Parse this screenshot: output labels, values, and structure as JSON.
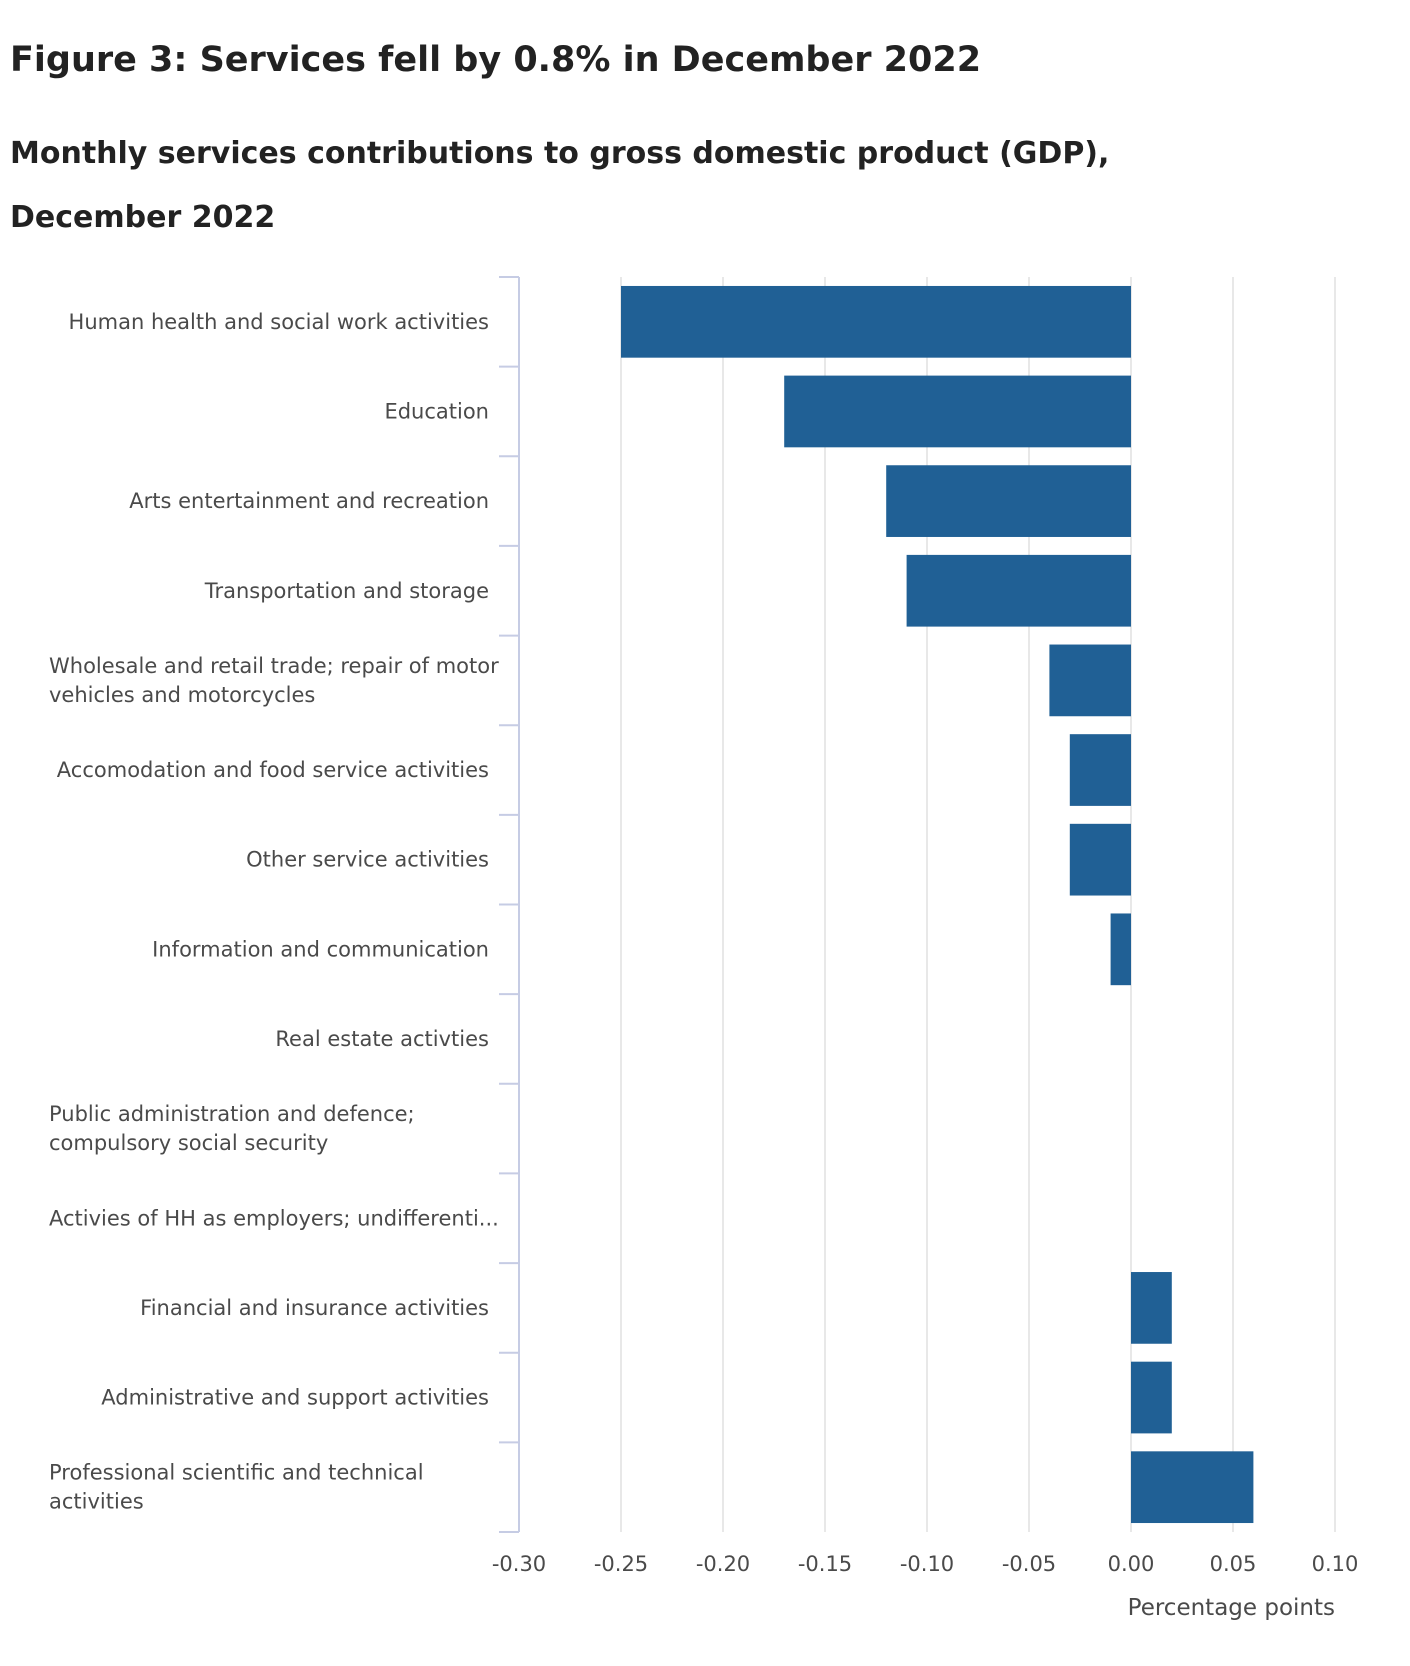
{
  "header": {
    "title": "Figure 3: Services fell by 0.8% in December 2022",
    "subtitle": "Monthly services contributions to gross domestic product (GDP), December 2022"
  },
  "chart_data": {
    "type": "bar",
    "orientation": "horizontal",
    "title": "Figure 3: Services fell by 0.8% in December 2022",
    "subtitle": "Monthly services contributions to gross domestic product (GDP), December 2022",
    "xlabel": "Percentage points",
    "ylabel": "",
    "xlim": [
      -0.3,
      0.1
    ],
    "xticks": [
      "-0.30",
      "-0.25",
      "-0.20",
      "-0.15",
      "-0.10",
      "-0.05",
      "0.00",
      "0.05",
      "0.10"
    ],
    "grid": true,
    "bar_color": "#206095",
    "categories": [
      [
        "Human health and social work activities"
      ],
      [
        "Education"
      ],
      [
        "Arts entertainment and recreation"
      ],
      [
        "Transportation and storage"
      ],
      [
        "Wholesale and retail trade; repair of motor",
        "vehicles and motorcycles"
      ],
      [
        "Accomodation and food service activities"
      ],
      [
        "Other service activities"
      ],
      [
        "Information and communication"
      ],
      [
        "Real estate activties"
      ],
      [
        "Public administration and defence;",
        "compulsory social security"
      ],
      [
        "Activies of HH as employers; undifferenti..."
      ],
      [
        "Financial and insurance activities"
      ],
      [
        "Administrative and support activities"
      ],
      [
        "Professional scientific and technical",
        "activities"
      ]
    ],
    "values": [
      -0.25,
      -0.17,
      -0.12,
      -0.11,
      -0.04,
      -0.03,
      -0.03,
      -0.01,
      0.0,
      0.0,
      0.0,
      0.02,
      0.02,
      0.06
    ]
  }
}
